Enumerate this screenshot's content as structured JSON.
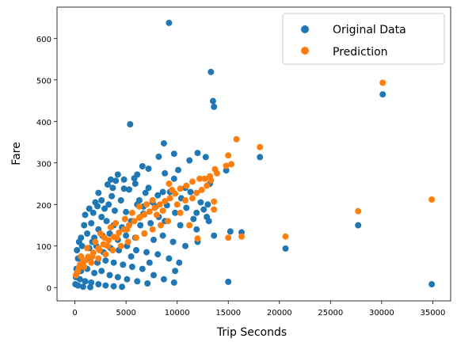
{
  "chart_data": {
    "type": "scatter",
    "title": "",
    "xlabel": "Trip Seconds",
    "ylabel": "Fare",
    "xlim": [
      -1750,
      36750
    ],
    "ylim": [
      -32,
      675
    ],
    "xticks": [
      0,
      5000,
      10000,
      15000,
      20000,
      25000,
      30000,
      35000
    ],
    "yticks": [
      0,
      100,
      200,
      300,
      400,
      500,
      600
    ],
    "grid": false,
    "legend_position": "top-right",
    "series": [
      {
        "name": "Original Data",
        "color": "#1f77b4",
        "points": [
          [
            9200,
            637
          ],
          [
            13300,
            519
          ],
          [
            13500,
            449
          ],
          [
            13600,
            435
          ],
          [
            30100,
            465
          ],
          [
            5400,
            393
          ],
          [
            8700,
            347
          ],
          [
            9700,
            322
          ],
          [
            12000,
            324
          ],
          [
            8200,
            315
          ],
          [
            12800,
            314
          ],
          [
            18100,
            314
          ],
          [
            11200,
            306
          ],
          [
            6600,
            292
          ],
          [
            7200,
            286
          ],
          [
            10100,
            283
          ],
          [
            14800,
            282
          ],
          [
            4200,
            272
          ],
          [
            6100,
            272
          ],
          [
            8800,
            275
          ],
          [
            3500,
            260
          ],
          [
            4000,
            257
          ],
          [
            5800,
            263
          ],
          [
            7200,
            240
          ],
          [
            9700,
            262
          ],
          [
            13200,
            250
          ],
          [
            3200,
            248
          ],
          [
            2300,
            228
          ],
          [
            4800,
            238
          ],
          [
            5300,
            236
          ],
          [
            6900,
            228
          ],
          [
            8600,
            230
          ],
          [
            11300,
            230
          ],
          [
            2600,
            210
          ],
          [
            3600,
            220
          ],
          [
            6100,
            200
          ],
          [
            8100,
            222
          ],
          [
            10400,
            215
          ],
          [
            12300,
            205
          ],
          [
            13000,
            200
          ],
          [
            1400,
            190
          ],
          [
            2200,
            196
          ],
          [
            2900,
            190
          ],
          [
            4500,
            210
          ],
          [
            6300,
            210
          ],
          [
            7600,
            205
          ],
          [
            9000,
            198
          ],
          [
            10900,
            192
          ],
          [
            12600,
            188
          ],
          [
            1000,
            175
          ],
          [
            1800,
            180
          ],
          [
            2600,
            170
          ],
          [
            3900,
            185
          ],
          [
            5000,
            182
          ],
          [
            6700,
            178
          ],
          [
            8200,
            170
          ],
          [
            9800,
            180
          ],
          [
            11600,
            165
          ],
          [
            13100,
            160
          ],
          [
            15200,
            135
          ],
          [
            16300,
            133
          ],
          [
            27700,
            150
          ],
          [
            34900,
            8
          ],
          [
            15000,
            14
          ],
          [
            20600,
            94
          ],
          [
            900,
            150
          ],
          [
            1600,
            155
          ],
          [
            2300,
            140
          ],
          [
            3100,
            160
          ],
          [
            3800,
            150
          ],
          [
            4600,
            145
          ],
          [
            5500,
            160
          ],
          [
            6400,
            150
          ],
          [
            7400,
            155
          ],
          [
            8800,
            160
          ],
          [
            10300,
            150
          ],
          [
            11900,
            140
          ],
          [
            13600,
            125
          ],
          [
            12000,
            110
          ],
          [
            600,
            120
          ],
          [
            1200,
            130
          ],
          [
            1900,
            120
          ],
          [
            2700,
            125
          ],
          [
            3400,
            130
          ],
          [
            4200,
            115
          ],
          [
            5000,
            125
          ],
          [
            5900,
            120
          ],
          [
            6800,
            130
          ],
          [
            7700,
            115
          ],
          [
            8600,
            125
          ],
          [
            9600,
            110
          ],
          [
            10800,
            100
          ],
          [
            200,
            90
          ],
          [
            700,
            100
          ],
          [
            1400,
            95
          ],
          [
            2100,
            100
          ],
          [
            2800,
            85
          ],
          [
            3500,
            95
          ],
          [
            4300,
            90
          ],
          [
            5100,
            100
          ],
          [
            6000,
            90
          ],
          [
            7000,
            85
          ],
          [
            8100,
            80
          ],
          [
            9200,
            70
          ],
          [
            10200,
            60
          ],
          [
            300,
            70
          ],
          [
            800,
            65
          ],
          [
            1500,
            70
          ],
          [
            2200,
            60
          ],
          [
            3000,
            65
          ],
          [
            3800,
            60
          ],
          [
            4700,
            55
          ],
          [
            5600,
            50
          ],
          [
            6600,
            45
          ],
          [
            7700,
            30
          ],
          [
            8700,
            20
          ],
          [
            9700,
            12
          ],
          [
            150,
            45
          ],
          [
            600,
            40
          ],
          [
            1200,
            45
          ],
          [
            1900,
            35
          ],
          [
            2600,
            40
          ],
          [
            3400,
            30
          ],
          [
            4200,
            25
          ],
          [
            5100,
            20
          ],
          [
            6100,
            15
          ],
          [
            7100,
            10
          ],
          [
            100,
            25
          ],
          [
            500,
            20
          ],
          [
            1000,
            15
          ],
          [
            1600,
            12
          ],
          [
            2300,
            8
          ],
          [
            3000,
            5
          ],
          [
            3800,
            3
          ],
          [
            4600,
            2
          ],
          [
            50,
            8
          ],
          [
            300,
            5
          ],
          [
            800,
            2
          ],
          [
            1500,
            1
          ],
          [
            4800,
            260
          ],
          [
            5900,
            250
          ],
          [
            9300,
            230
          ],
          [
            10800,
            240
          ],
          [
            2000,
            205
          ],
          [
            3300,
            200
          ],
          [
            7900,
            195
          ],
          [
            11900,
            180
          ],
          [
            12900,
            170
          ],
          [
            400,
            110
          ],
          [
            1700,
            110
          ],
          [
            5500,
            75
          ],
          [
            7300,
            60
          ],
          [
            9800,
            40
          ],
          [
            6700,
            195
          ],
          [
            3700,
            240
          ]
        ]
      },
      {
        "name": "Prediction",
        "color": "#ff7f0e",
        "points": [
          [
            30100,
            493
          ],
          [
            15800,
            357
          ],
          [
            18100,
            338
          ],
          [
            15000,
            318
          ],
          [
            13700,
            285
          ],
          [
            13200,
            268
          ],
          [
            12700,
            262
          ],
          [
            12200,
            262
          ],
          [
            11500,
            255
          ],
          [
            10900,
            245
          ],
          [
            10300,
            238
          ],
          [
            9800,
            226
          ],
          [
            9300,
            215
          ],
          [
            8800,
            208
          ],
          [
            8300,
            200
          ],
          [
            7800,
            192
          ],
          [
            7300,
            183
          ],
          [
            6800,
            176
          ],
          [
            6300,
            168
          ],
          [
            5800,
            160
          ],
          [
            5300,
            150
          ],
          [
            4800,
            140
          ],
          [
            4300,
            132
          ],
          [
            3800,
            122
          ],
          [
            3300,
            114
          ],
          [
            2800,
            104
          ],
          [
            2300,
            95
          ],
          [
            1800,
            84
          ],
          [
            1300,
            74
          ],
          [
            800,
            62
          ],
          [
            400,
            48
          ],
          [
            100,
            30
          ],
          [
            34900,
            212
          ],
          [
            27700,
            184
          ],
          [
            20600,
            123
          ],
          [
            15000,
            120
          ],
          [
            16300,
            123
          ],
          [
            13600,
            207
          ],
          [
            12000,
            118
          ],
          [
            13600,
            188
          ],
          [
            11200,
            150
          ],
          [
            10300,
            180
          ],
          [
            9100,
            160
          ],
          [
            8400,
            150
          ],
          [
            7600,
            140
          ],
          [
            6800,
            130
          ],
          [
            6000,
            120
          ],
          [
            5200,
            110
          ],
          [
            4500,
            100
          ],
          [
            3700,
            90
          ],
          [
            3000,
            80
          ],
          [
            2300,
            70
          ],
          [
            1600,
            60
          ],
          [
            900,
            50
          ],
          [
            300,
            40
          ],
          [
            3500,
            145
          ],
          [
            4000,
            155
          ],
          [
            2500,
            130
          ],
          [
            6300,
            195
          ],
          [
            7000,
            200
          ],
          [
            14800,
            293
          ],
          [
            15300,
            297
          ],
          [
            13900,
            275
          ],
          [
            12900,
            245
          ],
          [
            11500,
            215
          ],
          [
            10000,
            200
          ],
          [
            9500,
            235
          ],
          [
            8000,
            175
          ],
          [
            4900,
            165
          ],
          [
            5600,
            180
          ],
          [
            2900,
            120
          ],
          [
            2000,
            110
          ],
          [
            1200,
            95
          ],
          [
            600,
            75
          ],
          [
            10800,
            210
          ],
          [
            12400,
            235
          ],
          [
            7600,
            210
          ],
          [
            6400,
            170
          ],
          [
            5100,
            140
          ],
          [
            4100,
            120
          ],
          [
            3200,
            100
          ],
          [
            2400,
            90
          ],
          [
            1700,
            75
          ],
          [
            1000,
            65
          ],
          [
            500,
            55
          ],
          [
            200,
            35
          ],
          [
            9200,
            250
          ],
          [
            8600,
            185
          ],
          [
            11900,
            228
          ],
          [
            13300,
            258
          ]
        ]
      }
    ]
  }
}
